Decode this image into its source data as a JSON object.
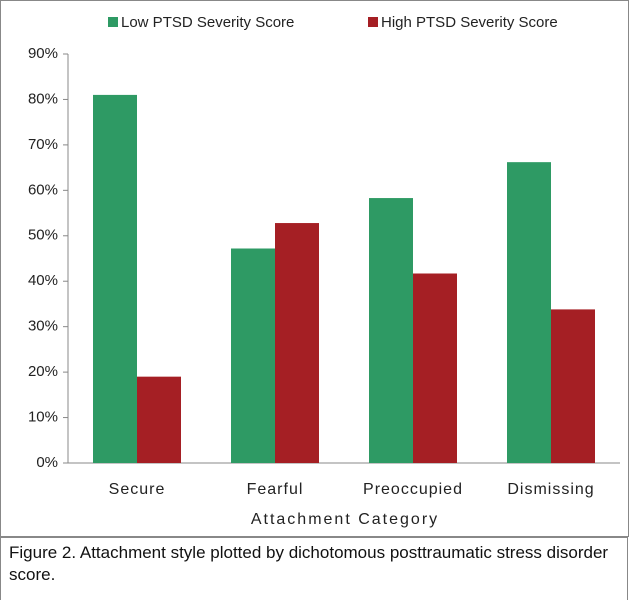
{
  "chart_data": {
    "type": "bar",
    "categories": [
      "Secure",
      "Fearful",
      "Preoccupied",
      "Dismissing"
    ],
    "series": [
      {
        "name": "Low PTSD Severity Score",
        "color": "#2e9a64",
        "values": [
          81,
          47.2,
          58.3,
          66.2
        ]
      },
      {
        "name": "High PTSD Severity Score",
        "color": "#a51f24",
        "values": [
          19,
          52.8,
          41.7,
          33.8
        ]
      }
    ],
    "x_label": "Attachment Category",
    "ylim": [
      0,
      90
    ],
    "yticks": [
      {
        "value": 0,
        "label": "0%"
      },
      {
        "value": 10,
        "label": "10%"
      },
      {
        "value": 20,
        "label": "20%"
      },
      {
        "value": 30,
        "label": "30%"
      },
      {
        "value": 40,
        "label": "40%"
      },
      {
        "value": 50,
        "label": "50%"
      },
      {
        "value": 60,
        "label": "60%"
      },
      {
        "value": 70,
        "label": "70%"
      },
      {
        "value": 80,
        "label": "80%"
      },
      {
        "value": 90,
        "label": "90%"
      }
    ],
    "legend": "top",
    "grid": false
  },
  "caption": "Figure 2. Attachment style plotted by dichotomous posttraumatic stress disorder score."
}
